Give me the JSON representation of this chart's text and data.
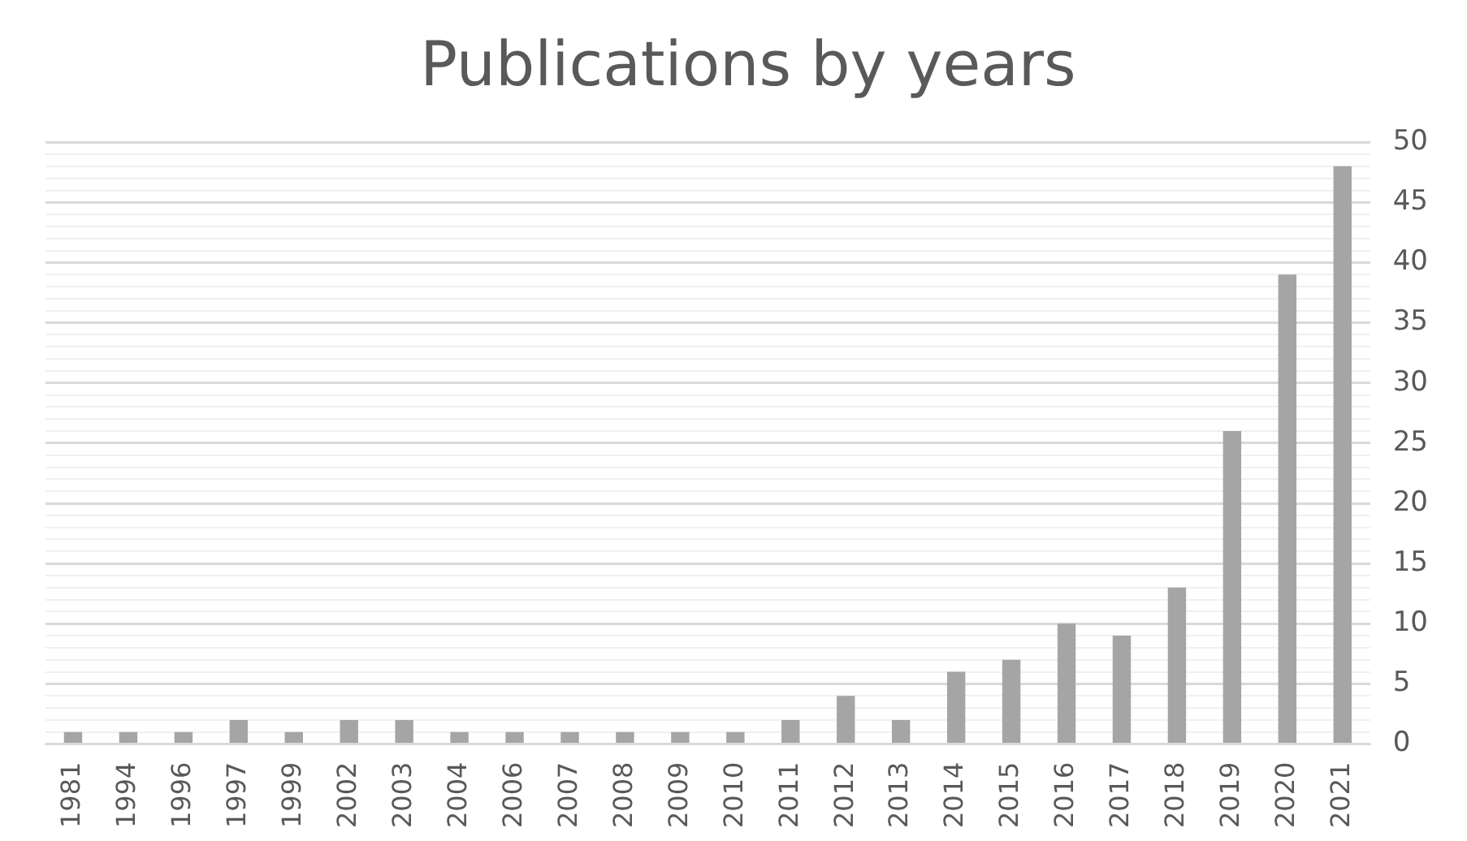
{
  "chart_data": {
    "type": "bar",
    "title": "Publications by years",
    "categories": [
      "1981",
      "1994",
      "1996",
      "1997",
      "1999",
      "2002",
      "2003",
      "2004",
      "2006",
      "2007",
      "2008",
      "2009",
      "2010",
      "2011",
      "2012",
      "2013",
      "2014",
      "2015",
      "2016",
      "2017",
      "2018",
      "2019",
      "2020",
      "2021"
    ],
    "values": [
      1,
      1,
      1,
      2,
      1,
      2,
      2,
      1,
      1,
      1,
      1,
      1,
      1,
      2,
      4,
      2,
      6,
      7,
      10,
      9,
      13,
      26,
      39,
      48
    ],
    "color": "#a5a5a5",
    "ylim": [
      0,
      50
    ],
    "yticks": [
      0,
      {
        "value": 1,
        "label": null
      },
      {
        "value": 2,
        "label": null
      },
      {
        "value": 3,
        "label": null
      },
      {
        "value": 4,
        "label": null
      },
      5,
      {
        "value": 6,
        "label": null
      },
      {
        "value": 7,
        "label": null
      },
      {
        "value": 8,
        "label": null
      },
      {
        "value": 9,
        "label": null
      },
      10,
      {
        "value": 11,
        "label": null
      },
      {
        "value": 12,
        "label": null
      },
      {
        "value": 13,
        "label": null
      },
      {
        "value": 14,
        "label": null
      },
      15,
      {
        "value": 16,
        "label": null
      },
      {
        "value": 17,
        "label": null
      },
      {
        "value": 18,
        "label": null
      },
      {
        "value": 19,
        "label": null
      },
      20,
      {
        "value": 21,
        "label": null
      },
      {
        "value": 22,
        "label": null
      },
      {
        "value": 23,
        "label": null
      },
      {
        "value": 24,
        "label": null
      },
      25,
      {
        "value": 26,
        "label": null
      },
      {
        "value": 27,
        "label": null
      },
      {
        "value": 28,
        "label": null
      },
      {
        "value": 29,
        "label": null
      },
      30,
      {
        "value": 31,
        "label": null
      },
      {
        "value": 32,
        "label": null
      },
      {
        "value": 33,
        "label": null
      },
      {
        "value": 34,
        "label": null
      },
      35,
      {
        "value": 36,
        "label": null
      },
      {
        "value": 37,
        "label": null
      },
      {
        "value": 38,
        "label": null
      },
      {
        "value": 39,
        "label": null
      },
      40,
      {
        "value": 41,
        "label": null
      },
      {
        "value": 42,
        "label": null
      },
      {
        "value": 43,
        "label": null
      },
      {
        "value": 44,
        "label": null
      },
      45,
      {
        "value": 46,
        "label": null
      },
      {
        "value": 47,
        "label": null
      },
      {
        "value": 48,
        "label": null
      },
      {
        "value": 49,
        "label": null
      },
      50
    ],
    "grid": "y"
  }
}
